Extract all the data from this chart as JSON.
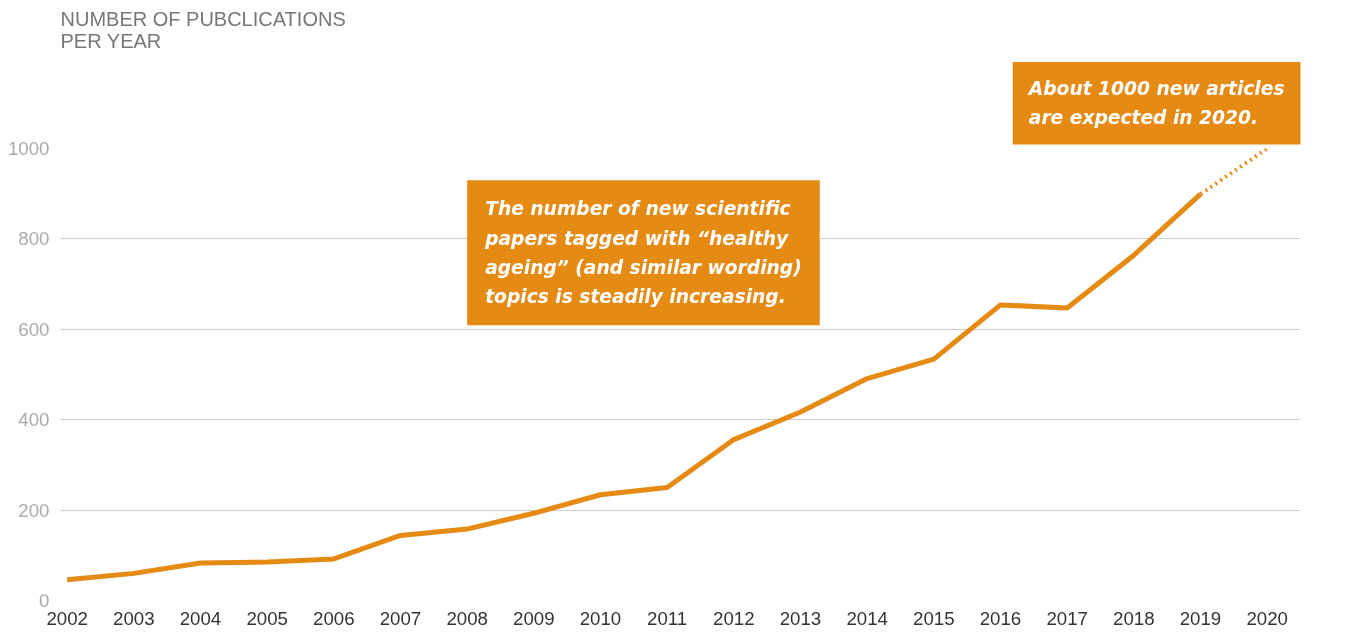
{
  "chart_data": {
    "type": "line",
    "title": "NUMBER OF PUBCLICATIONS\nPER YEAR",
    "series": [
      {
        "color": "#e58a13",
        "line_style": "solid",
        "x": [
          2002,
          2003,
          2004,
          2005,
          2006,
          2007,
          2008,
          2009,
          2010,
          2011,
          2012,
          2013,
          2014,
          2015,
          2016,
          2017,
          2018,
          2019
        ],
        "values": [
          46,
          60,
          83,
          85,
          92,
          144,
          158,
          193,
          234,
          250,
          356,
          417,
          491,
          534,
          654,
          647,
          764,
          899
        ]
      },
      {
        "color": "#e58a13",
        "line_style": "dotted",
        "x": [
          2019,
          2020
        ],
        "values": [
          899,
          1000
        ]
      }
    ],
    "xlim": [
      2001.9,
      2020.5
    ],
    "ylim": [
      0,
      1000
    ],
    "xticks": [
      2002,
      2003,
      2004,
      2005,
      2006,
      2007,
      2008,
      2009,
      2010,
      2011,
      2012,
      2013,
      2014,
      2015,
      2016,
      2017,
      2018,
      2019,
      2020
    ],
    "yticks": [
      0,
      200,
      400,
      600,
      800,
      1000
    ],
    "grid": "y",
    "annotations": [
      "The number of new scientific\npapers tagged with “healthy\nageing” (and similar wording)\ntopics is steadily increasing.",
      "About 1000 new articles\nare expected in 2020."
    ]
  }
}
